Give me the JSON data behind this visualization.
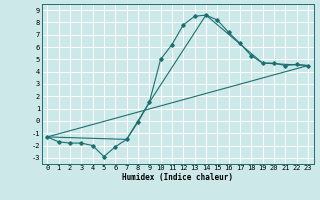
{
  "xlabel": "Humidex (Indice chaleur)",
  "background_color": "#cce8e8",
  "grid_color": "#ffffff",
  "line_color": "#1a7070",
  "xlim": [
    -0.5,
    23.5
  ],
  "ylim": [
    -3.5,
    9.5
  ],
  "xticks": [
    0,
    1,
    2,
    3,
    4,
    5,
    6,
    7,
    8,
    9,
    10,
    11,
    12,
    13,
    14,
    15,
    16,
    17,
    18,
    19,
    20,
    21,
    22,
    23
  ],
  "yticks": [
    -3,
    -2,
    -1,
    0,
    1,
    2,
    3,
    4,
    5,
    6,
    7,
    8,
    9
  ],
  "line1_x": [
    0,
    1,
    2,
    3,
    4,
    5,
    6,
    7,
    8,
    9,
    10,
    11,
    12,
    13,
    14,
    15,
    16,
    17,
    18,
    19,
    20,
    21,
    22,
    23
  ],
  "line1_y": [
    -1.3,
    -1.7,
    -1.8,
    -1.8,
    -2.0,
    -2.9,
    -2.1,
    -1.5,
    -0.1,
    1.5,
    5.0,
    6.2,
    7.8,
    8.5,
    8.6,
    8.2,
    7.2,
    6.3,
    5.3,
    4.7,
    4.7,
    4.5,
    4.6,
    4.5
  ],
  "line2_x": [
    0,
    7,
    9,
    14,
    19,
    23
  ],
  "line2_y": [
    -1.3,
    -1.5,
    1.5,
    8.6,
    4.7,
    4.5
  ],
  "line3_x": [
    0,
    23
  ],
  "line3_y": [
    -1.3,
    4.5
  ],
  "xlabel_fontsize": 5.5,
  "tick_fontsize": 5.0
}
